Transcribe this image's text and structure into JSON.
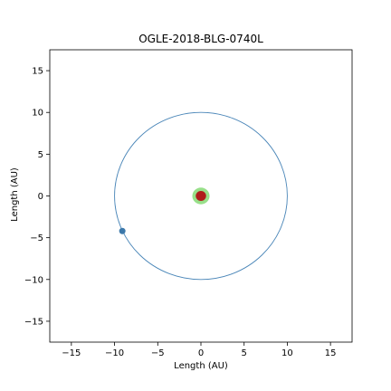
{
  "chart_data": {
    "type": "scatter",
    "title": "OGLE-2018-BLG-0740L",
    "xlabel": "Length (AU)",
    "ylabel": "Length (AU)",
    "xlim": [
      -17.5,
      17.5
    ],
    "ylim": [
      -17.5,
      17.5
    ],
    "xticks": [
      -15,
      -10,
      -5,
      0,
      5,
      10,
      15
    ],
    "yticks": [
      -15,
      -10,
      -5,
      0,
      5,
      10,
      15
    ],
    "xtick_labels": [
      "−15",
      "−10",
      "−5",
      "0",
      "5",
      "10",
      "15"
    ],
    "ytick_labels": [
      "−15",
      "−10",
      "−5",
      "0",
      "5",
      "10",
      "15"
    ],
    "grid": false,
    "orbit": {
      "center": [
        0,
        0
      ],
      "radius": 10,
      "color": "#4a86b8"
    },
    "planet": {
      "x": -9.1,
      "y": -4.2,
      "color": "#3b78aa"
    },
    "habitable_zone": {
      "center": [
        0,
        0
      ],
      "radius": 1.0,
      "color": "#98e08a"
    },
    "star": {
      "x": 0,
      "y": 0,
      "radius": 0.6,
      "color": "#b01c1c"
    }
  }
}
